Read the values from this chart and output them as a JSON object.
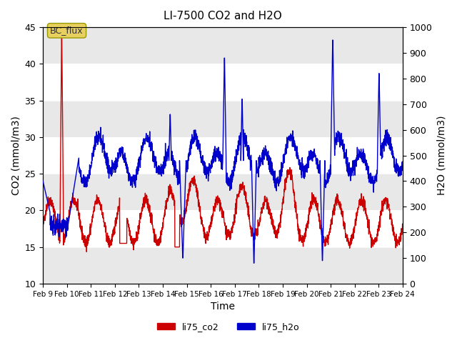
{
  "title": "LI-7500 CO2 and H2O",
  "xlabel": "Time",
  "ylabel_left": "CO2 (mmol/m3)",
  "ylabel_right": "H2O (mmol/m3)",
  "ylim_left": [
    10,
    45
  ],
  "ylim_right": [
    0,
    1000
  ],
  "x_tick_labels": [
    "Feb 9",
    "Feb 10",
    "Feb 11",
    "Feb 12",
    "Feb 13",
    "Feb 14",
    "Feb 15",
    "Feb 16",
    "Feb 17",
    "Feb 18",
    "Feb 19",
    "Feb 20",
    "Feb 21",
    "Feb 22",
    "Feb 23",
    "Feb 24"
  ],
  "legend_labels": [
    "li75_co2",
    "li75_h2o"
  ],
  "co2_color": "#cc0000",
  "h2o_color": "#0000cc",
  "annotation_text": "BC_flux",
  "background_color": "#ffffff",
  "band_color": "#e8e8e8",
  "yticks_left": [
    10,
    15,
    20,
    25,
    30,
    35,
    40,
    45
  ],
  "yticks_right": [
    0,
    100,
    200,
    300,
    400,
    500,
    600,
    700,
    800,
    900,
    1000
  ]
}
